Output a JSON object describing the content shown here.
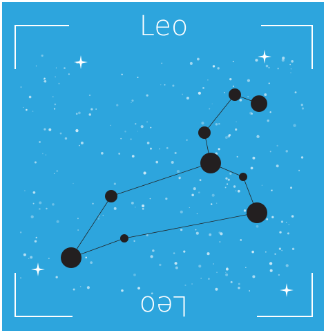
{
  "title": "Leo",
  "mirrored_title": "Leo"
}
